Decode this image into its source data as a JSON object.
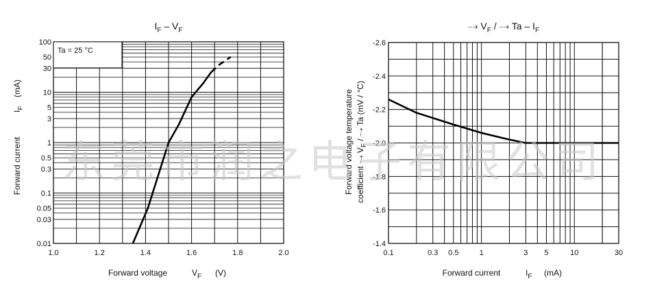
{
  "watermark": "东莞市润之电子有限公司",
  "chart_data": [
    {
      "type": "line",
      "title": {
        "main": "I",
        "sub1": "F",
        "mid": " – V",
        "sub2": "F"
      },
      "xlabel": {
        "text": "Forward voltage",
        "sym": "V",
        "sub": "F",
        "unit": "(V)"
      },
      "ylabel": {
        "text": "Forward current",
        "sym": "I",
        "sub": "F",
        "unit": "(mA)"
      },
      "annotation": "Ta = 25 °C",
      "x_scale": "linear",
      "y_scale": "log",
      "xlim": [
        1.0,
        2.0
      ],
      "ylim": [
        0.01,
        100
      ],
      "x_ticks": [
        "1.0",
        "1.2",
        "1.4",
        "1.6",
        "1.8",
        "2.0"
      ],
      "y_ticks": [
        "0.01",
        "0.03",
        "0.05",
        "0.1",
        "0.3",
        "0.5",
        "1",
        "3",
        "5",
        "10",
        "30",
        "50",
        "100"
      ],
      "grid": true,
      "series": [
        {
          "style": "solid",
          "x": [
            1.345,
            1.41,
            1.5,
            1.545,
            1.6,
            1.65,
            1.685
          ],
          "y": [
            0.01,
            0.05,
            1,
            2.3,
            8,
            15,
            25
          ]
        },
        {
          "style": "dashed",
          "x": [
            1.685,
            1.72,
            1.77
          ],
          "y": [
            25,
            35,
            50
          ]
        }
      ]
    },
    {
      "type": "line",
      "title": {
        "pre": "⤍ V",
        "sub1": "F",
        "mid": " / ⤍ Ta – I",
        "sub2": "F"
      },
      "xlabel": {
        "text": "Forward current",
        "sym": "I",
        "sub": "F",
        "unit": "(mA)"
      },
      "ylabel": {
        "line1": "Forward voltage temperature",
        "line2_pre": "coefficient ⤍ V",
        "line2_sub": "F",
        "line2_post": " / ⤍ Ta (mV / °C)"
      },
      "x_scale": "log",
      "y_scale": "linear",
      "xlim": [
        0.1,
        30
      ],
      "ylim": [
        -1.4,
        -2.6
      ],
      "x_ticks": [
        "0.1",
        "0.3",
        "0.5",
        "1",
        "3",
        "5",
        "10",
        "30"
      ],
      "y_ticks": [
        "-2.6",
        "-2.4",
        "-2.2",
        "-2.0",
        "-1.8",
        "-1.6",
        "-1.4"
      ],
      "grid": true,
      "series": [
        {
          "style": "solid",
          "x": [
            0.1,
            0.2,
            0.5,
            1,
            2,
            3,
            5,
            10,
            30
          ],
          "y": [
            -2.26,
            -2.18,
            -2.11,
            -2.06,
            -2.02,
            -2.0,
            -2.0,
            -2.0,
            -2.0
          ]
        }
      ]
    }
  ]
}
